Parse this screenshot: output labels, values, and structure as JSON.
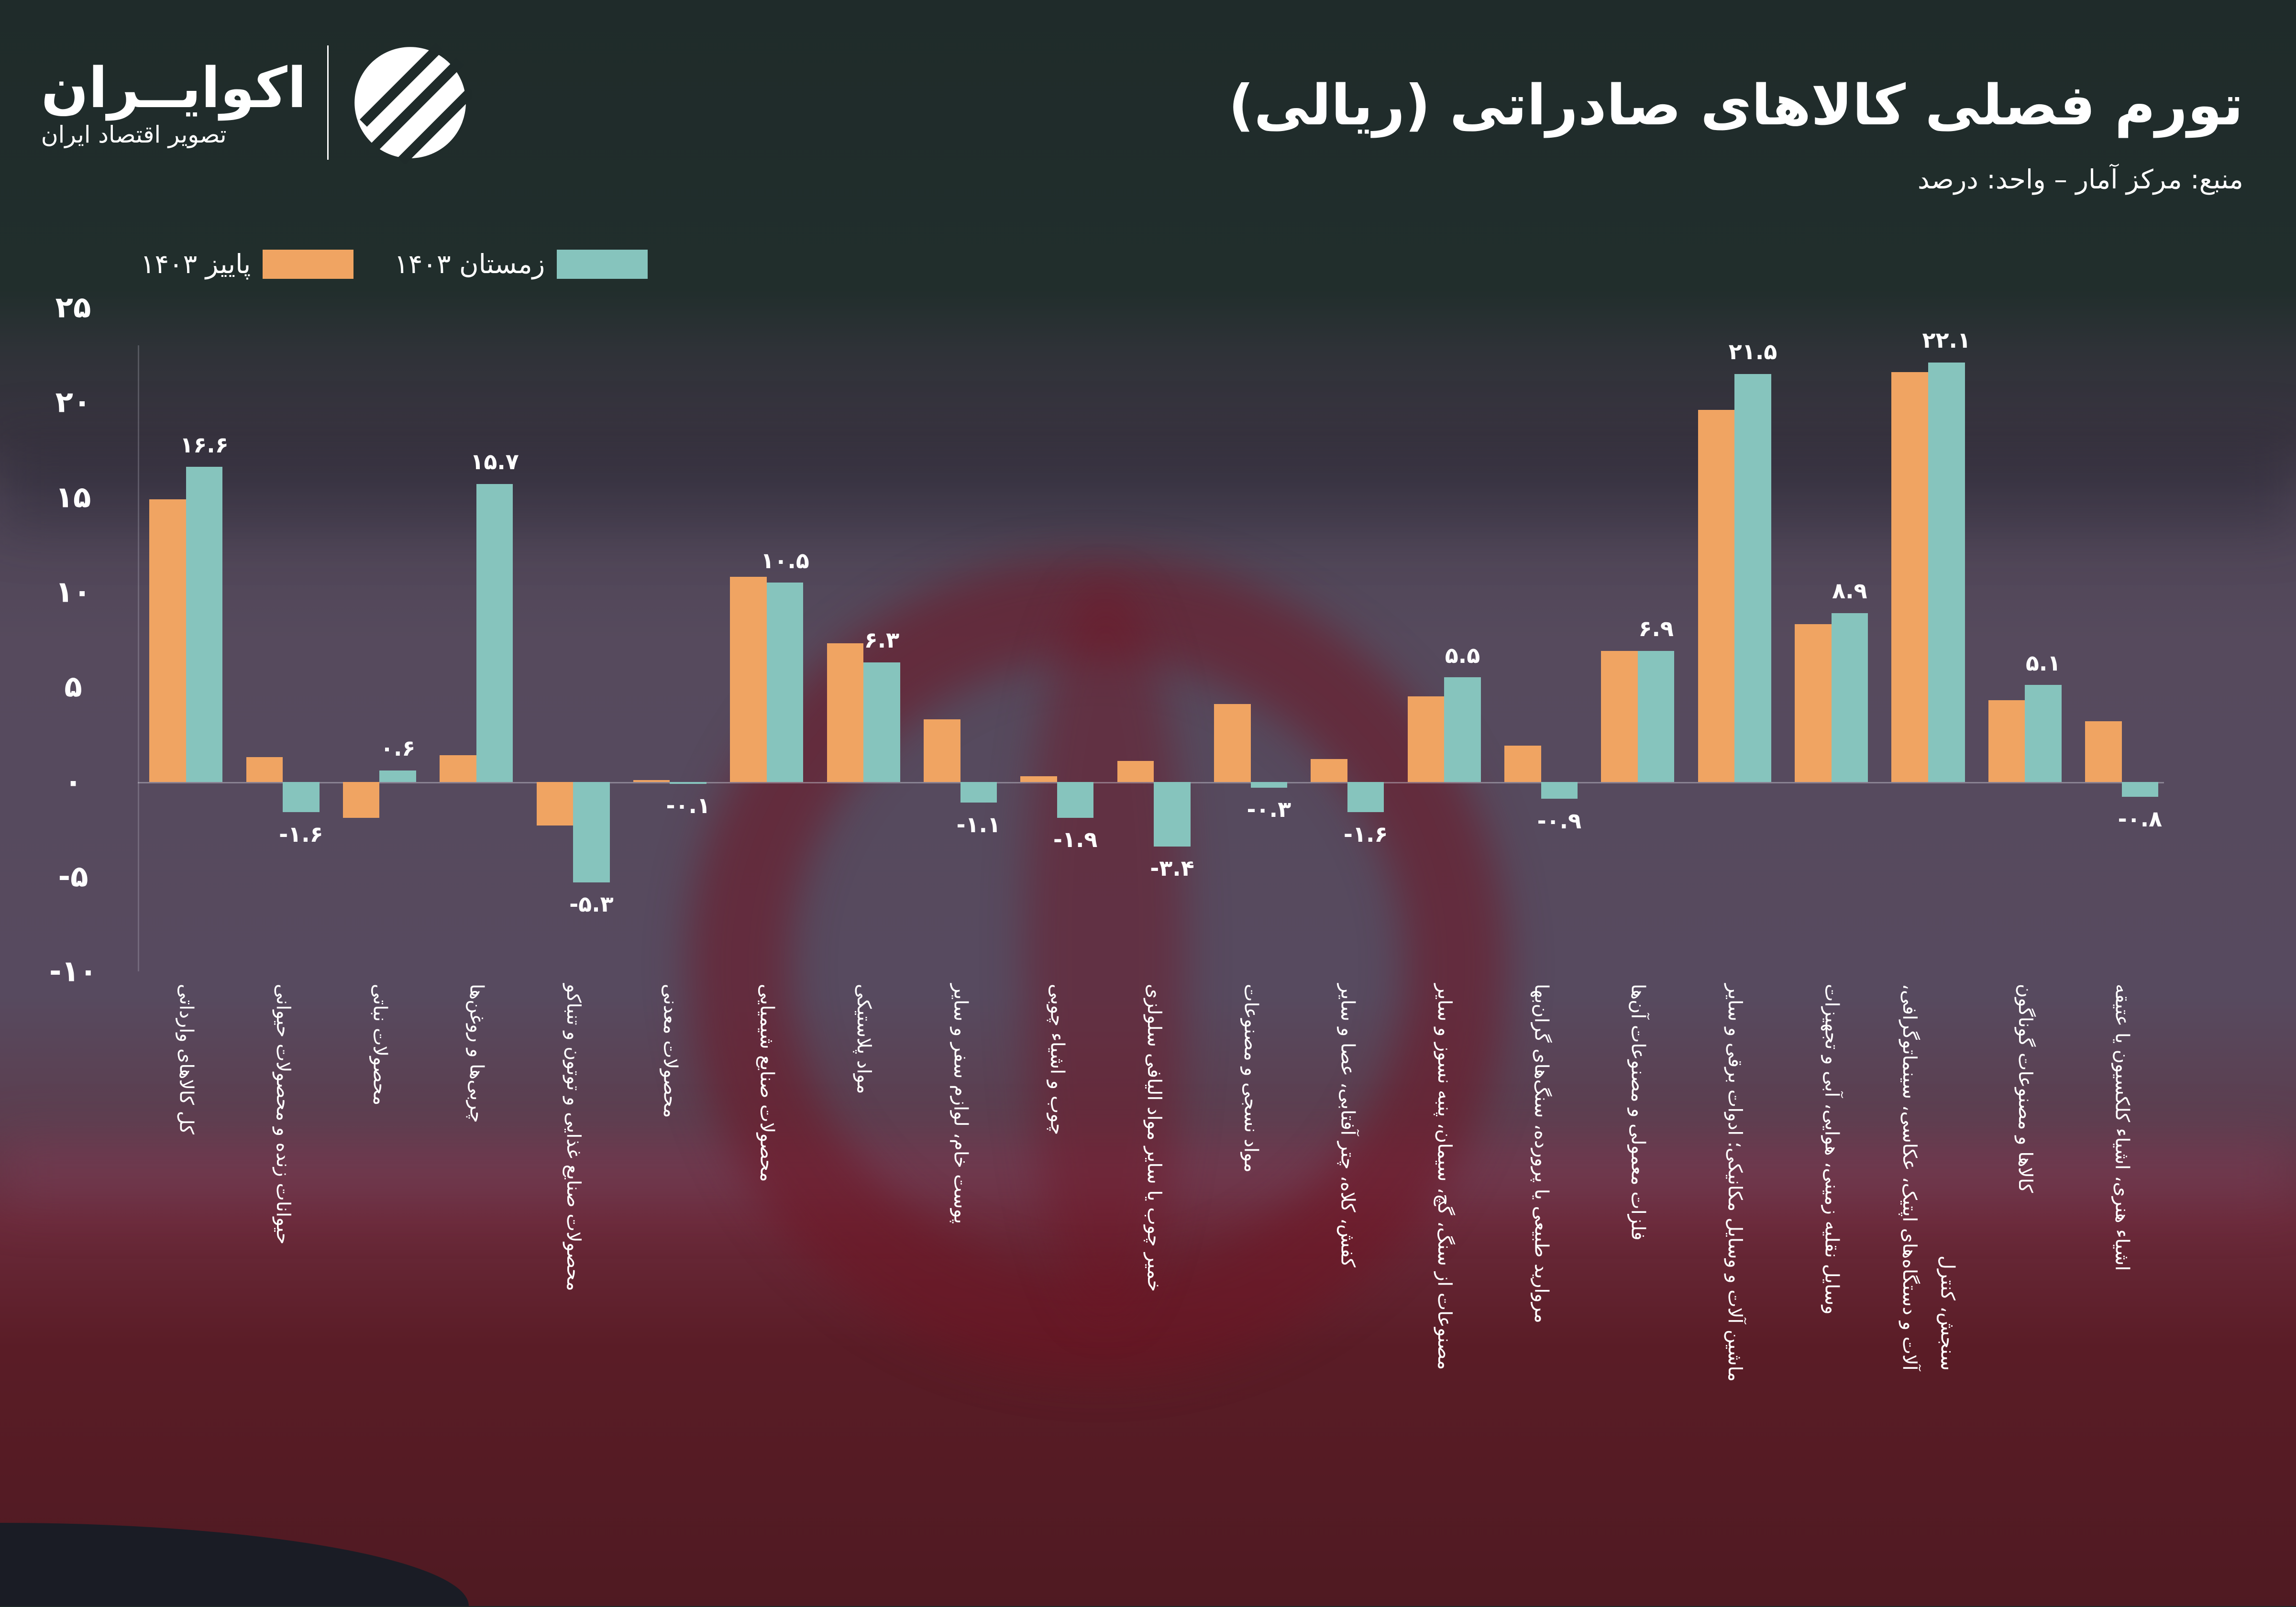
{
  "header": {
    "title": "تورم فصلی کالاهای صادراتی (ریالی)",
    "source": "منبع: مرکز آمار – واحد: درصد",
    "logo_name": "اکوایــران",
    "logo_subtitle": "تصویر اقتصاد ایران"
  },
  "colors": {
    "autumn": "#f0a462",
    "winter": "#86c4bd"
  },
  "chart_data": {
    "type": "bar",
    "title": "تورم فصلی کالاهای صادراتی (ریالی)",
    "ylabel": "درصد",
    "ylim": [
      -10,
      25
    ],
    "yticks": [
      25,
      20,
      15,
      10,
      5,
      0,
      -5,
      -10
    ],
    "ytick_labels": [
      "۲۵",
      "۲۰",
      "۱۵",
      "۱۰",
      "۵",
      "۰",
      "-۵",
      "-۱۰"
    ],
    "legend_position": "top-left",
    "categories": [
      "کل کالاهای وارداتی",
      "حیوانات زنده و محصولات حیوانی",
      "محصولات نباتی",
      "چربی‌ها و روغن‌ها",
      "محصولات صنایع غذایی و توتون و تنباکو",
      "محصولات معدنی",
      "محصولات صنایع شیمیایی",
      "مواد پلاستیکی",
      "پوست خام، لوازم سفر و سایر",
      "چوب و اشیاء چوبی",
      "خمیر چوب یا سایر مواد الیافی سلولزی",
      "مواد نسجی و مصنوعات",
      "کفش، کلاه، چتر آفتابی، عصا و سایر",
      "مصنوعات از سنگ، گچ، سیمان، پنبه نسوز و سایر",
      "مروارید طبیعی یا پرورده، سنگ‌های گران‌بها",
      "فلزات معمولی و مصنوعات آن‌ها",
      "ماشین آلات و وسایل مکانیکی؛ ادوات برقی و سایر",
      "وسایل نقلیه زمینی، هوایی، آبی و تجهیزات",
      "آلات و دستگاه‌های اپتیک، عکاسی، سینماتوگرافی،\nسنجش، کنترل",
      "کالاها و مصنوعات گوناگون",
      "اشیاء هنری، اشیاء کلکسیون یا عتیقه"
    ],
    "series": [
      {
        "name": "پاییز ۱۴۰۳",
        "color": "#f0a462",
        "values": [
          14.9,
          1.3,
          -1.9,
          1.4,
          -2.3,
          0.1,
          10.8,
          7.3,
          3.3,
          0.3,
          1.1,
          4.1,
          1.2,
          4.5,
          1.9,
          6.9,
          19.6,
          8.3,
          21.6,
          4.3,
          3.2
        ]
      },
      {
        "name": "زمستان ۱۴۰۳",
        "color": "#86c4bd",
        "values": [
          16.6,
          -1.6,
          0.6,
          15.7,
          -5.3,
          -0.1,
          10.5,
          6.3,
          -1.1,
          -1.9,
          -3.4,
          -0.3,
          -1.6,
          5.5,
          -0.9,
          6.9,
          21.5,
          8.9,
          22.1,
          5.1,
          -0.8
        ]
      }
    ],
    "value_labels": [
      "۱۶.۶",
      "-۱.۶",
      "۰.۶",
      "۱۵.۷",
      "-۵.۳",
      "-۰.۱",
      "۱۰.۵",
      "۶.۳",
      "-۱.۱",
      "-۱.۹",
      "-۳.۴",
      "-۰.۳",
      "-۱.۶",
      "۵.۵",
      "-۰.۹",
      "۶.۹",
      "۲۱.۵",
      "۸.۹",
      "۲۲.۱",
      "۵.۱",
      "-۰.۸"
    ]
  }
}
